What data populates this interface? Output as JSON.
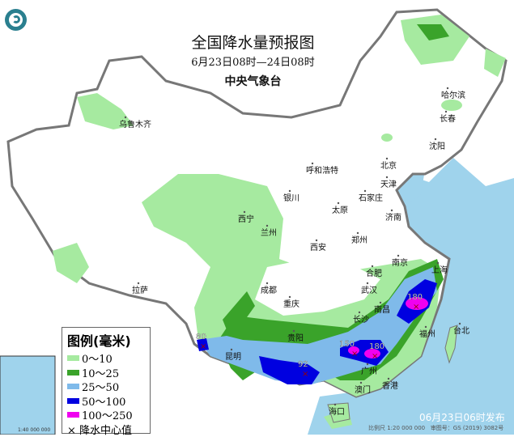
{
  "header": {
    "title": "全国降水量预报图",
    "period": "6月23日08时—24日08时",
    "agency": "中央气象台"
  },
  "legend": {
    "title": "图例(毫米)",
    "items": [
      {
        "label": "0～10",
        "color": "#a6eaa0"
      },
      {
        "label": "10～25",
        "color": "#3aa32a"
      },
      {
        "label": "25～50",
        "color": "#7fbaea"
      },
      {
        "label": "50～100",
        "color": "#0000e0"
      },
      {
        "label": "100～250",
        "color": "#f000f0"
      }
    ],
    "center_marker": "× 降水中心值"
  },
  "cities": [
    "乌鲁木齐",
    "哈尔滨",
    "长春",
    "沈阳",
    "呼和浩特",
    "北京",
    "天津",
    "银川",
    "石家庄",
    "太原",
    "济南",
    "西宁",
    "兰州",
    "郑州",
    "西安",
    "拉萨",
    "成都",
    "合肥",
    "南京",
    "上海",
    "武汉",
    "重庆",
    "南昌",
    "长沙",
    "福州",
    "台北",
    "贵阳",
    "昆明",
    "广州",
    "香港",
    "澳门",
    "海口"
  ],
  "rain_centers": [
    "180",
    "150",
    "180",
    "80",
    "92"
  ],
  "sea_color": "#9fd3ec",
  "footer": {
    "issued": "06月23日06时发布",
    "scale": "比例尺 1:20 000 000",
    "map_no": "审图号：GS (2019) 3082号",
    "inset_scale": "1:40 000 000"
  }
}
